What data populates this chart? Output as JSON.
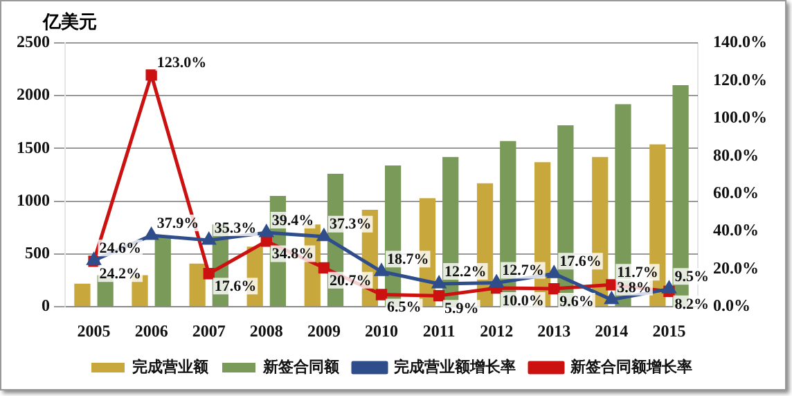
{
  "chart_data": {
    "type": "bar",
    "ylabel": "亿美元",
    "categories": [
      "2005",
      "2006",
      "2007",
      "2008",
      "2009",
      "2010",
      "2011",
      "2012",
      "2013",
      "2014",
      "2015"
    ],
    "series": [
      {
        "name": "完成营业额",
        "color": "#c8a83c",
        "values": [
          220,
          300,
          410,
          570,
          780,
          920,
          1030,
          1170,
          1370,
          1420,
          1540
        ]
      },
      {
        "name": "新签合同额",
        "color": "#7a9a5a",
        "values": [
          300,
          660,
          780,
          1050,
          1260,
          1340,
          1420,
          1570,
          1720,
          1920,
          2100
        ]
      },
      {
        "name": "完成营业额增长率",
        "type": "line",
        "axis": "y2",
        "color": "#2e4d8a",
        "marker": "triangle",
        "values": [
          24.6,
          37.9,
          35.3,
          39.4,
          37.3,
          18.7,
          12.2,
          12.7,
          17.6,
          3.8,
          9.5
        ],
        "value_labels": [
          "24.6%",
          "37.9%",
          "35.3%",
          "39.4%",
          "37.3%",
          "18.7%",
          "12.2%",
          "12.7%",
          "17.6%",
          "3.8%",
          "9.5%"
        ]
      },
      {
        "name": "新签合同额增长率",
        "type": "line",
        "axis": "y2",
        "color": "#cc1111",
        "marker": "square",
        "values": [
          24.2,
          123.0,
          17.6,
          34.8,
          20.7,
          6.5,
          5.9,
          10.0,
          9.6,
          11.7,
          8.2
        ],
        "value_labels": [
          "24.2%",
          "123.0%",
          "17.6%",
          "34.8%",
          "20.7%",
          "6.5%",
          "5.9%",
          "10.0%",
          "9.6%",
          "11.7%",
          "8.2%"
        ]
      }
    ],
    "ylim": [
      0,
      2500
    ],
    "yticks": [
      0,
      500,
      1000,
      1500,
      2000,
      2500
    ],
    "y2lim": [
      0,
      140
    ],
    "y2ticks": [
      {
        "value": 0,
        "label": "0.0%"
      },
      {
        "value": 20,
        "label": "20.0%"
      },
      {
        "value": 40,
        "label": "40.0%"
      },
      {
        "value": 60,
        "label": "60.0%"
      },
      {
        "value": 80,
        "label": "80.0%"
      },
      {
        "value": 100,
        "label": "100.0%"
      },
      {
        "value": 120,
        "label": "120.0%"
      },
      {
        "value": 140,
        "label": "140.0%"
      }
    ],
    "grid": "y",
    "legend": "bottom"
  }
}
